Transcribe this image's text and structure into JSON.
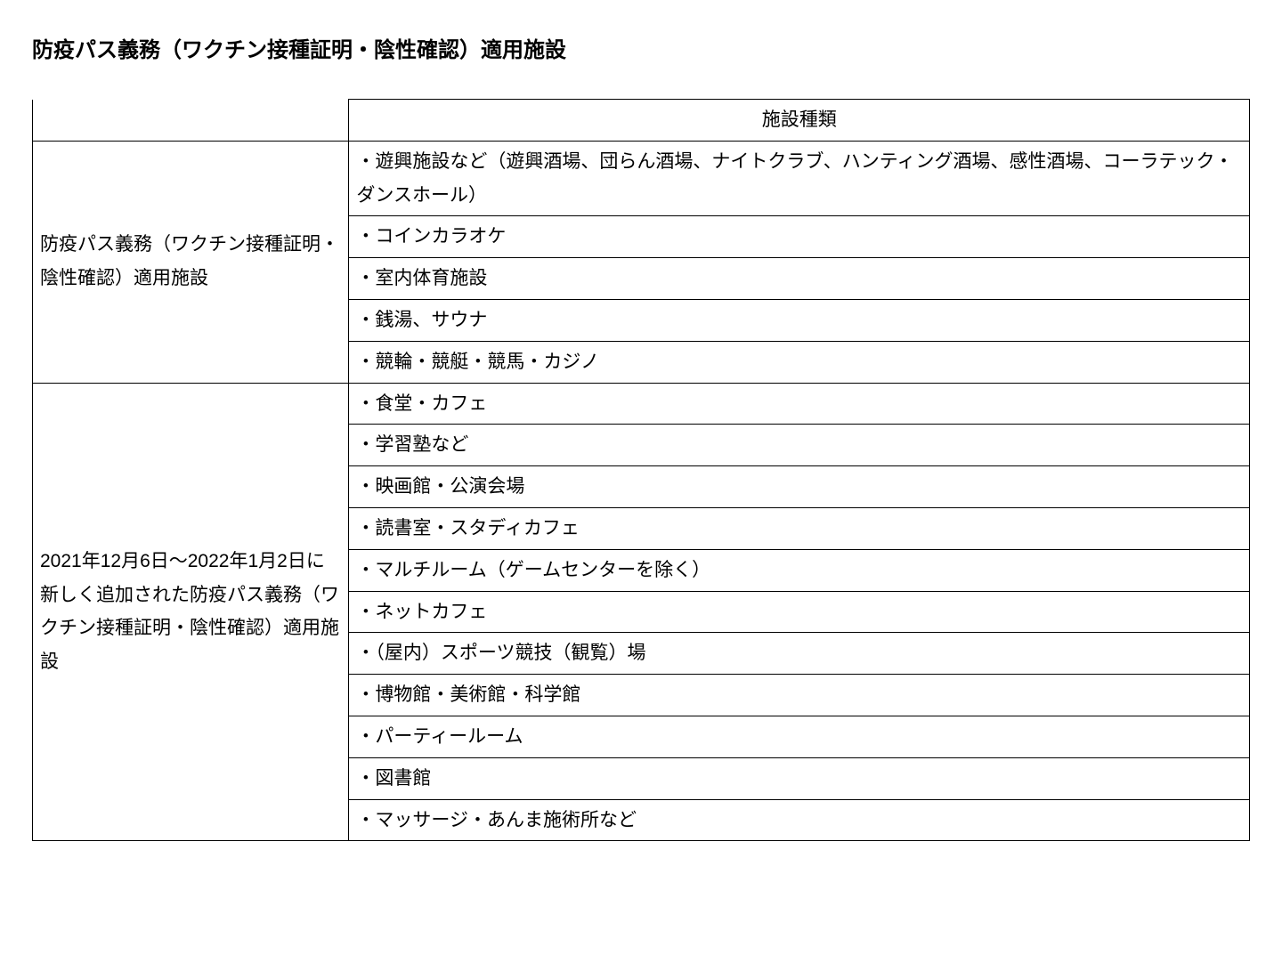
{
  "page": {
    "title": "防疫パス義務（ワクチン接種証明・陰性確認）適用施設"
  },
  "table": {
    "header": {
      "category": "",
      "type": "施設種類"
    },
    "sections": [
      {
        "category": "防疫パス義務（ワクチン接種証明・陰性確認）適用施設",
        "items": [
          "・遊興施設など（遊興酒場、団らん酒場、ナイトクラブ、ハンティング酒場、感性酒場、コーラテック・ダンスホール）",
          "・コインカラオケ",
          "・室内体育施設",
          "・銭湯、サウナ",
          "・競輪・競艇・競馬・カジノ"
        ]
      },
      {
        "category": "2021年12月6日～2022年1月2日に新しく追加された防疫パス義務（ワクチン接種証明・陰性確認）適用施設",
        "items": [
          "・食堂・カフェ",
          "・学習塾など",
          "・映画館・公演会場",
          "・読書室・スタディカフェ",
          "・マルチルーム（ゲームセンターを除く）",
          "・ネットカフェ",
          "・（屋内）スポーツ競技（観覧）場",
          "・博物館・美術館・科学館",
          "・パーティールーム",
          "・図書館",
          "・マッサージ・あんま施術所など"
        ]
      }
    ]
  },
  "style": {
    "colors": {
      "background": "#ffffff",
      "text": "#000000",
      "border": "#000000"
    },
    "fontsize": {
      "title": 24,
      "body": 21
    },
    "column_widths_pct": [
      26,
      74
    ]
  }
}
